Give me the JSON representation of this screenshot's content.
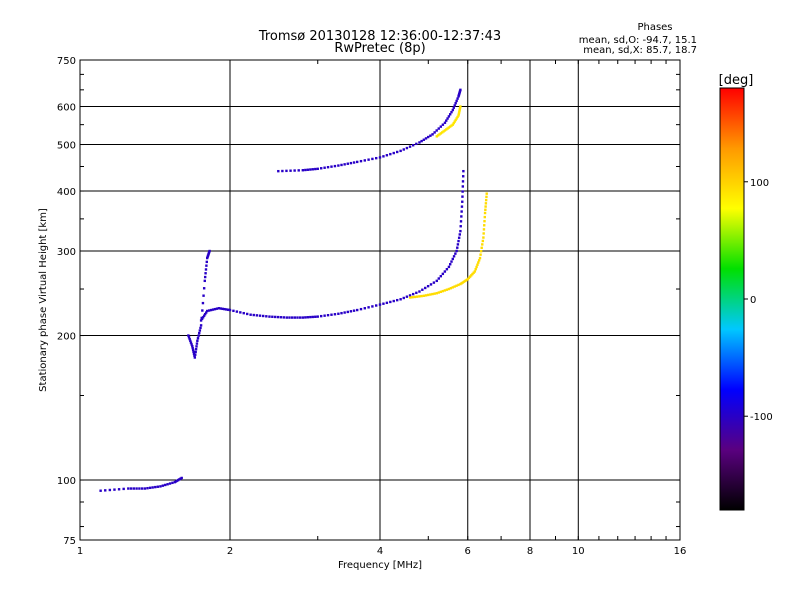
{
  "chart_data": {
    "type": "scatter",
    "title": "Tromsø 20130128 12:36:00-12:37:43",
    "subtitle": "RwPretec (8p)",
    "xlabel": "Frequency [MHz]",
    "ylabel": "Stationary phase Virtual Height [km]",
    "x_scale": "log",
    "y_scale": "log",
    "xlim": [
      1,
      16
    ],
    "ylim": [
      75,
      750
    ],
    "x_ticks": [
      1,
      2,
      4,
      6,
      8,
      10,
      16
    ],
    "x_tick_labels": [
      "1",
      "2",
      "4",
      "6",
      "8",
      "10",
      "16"
    ],
    "y_ticks": [
      75,
      100,
      200,
      300,
      400,
      500,
      600,
      750
    ],
    "y_tick_labels": [
      "75",
      "100",
      "200",
      "300",
      "400",
      "500",
      "600",
      "750"
    ],
    "x_gridlines": [
      2,
      4,
      6,
      8,
      10
    ],
    "y_gridlines": [
      100,
      200,
      300,
      400,
      500,
      600
    ],
    "grid": true,
    "phase_stats": {
      "heading": "Phases",
      "line_o": "mean, sd,O: -94.7, 15.1",
      "line_x": "mean, sd,X: 85.7, 18.7"
    },
    "colorbar": {
      "label": "[deg]",
      "range": [
        -180,
        180
      ],
      "ticks": [
        100,
        0,
        -100
      ],
      "tick_labels": [
        "100",
        "0",
        "-100"
      ],
      "colors": [
        "#000000",
        "#5a0080",
        "#0000ff",
        "#00c8ff",
        "#00e000",
        "#ffff00",
        "#ff9900",
        "#ff0000"
      ]
    },
    "traces": [
      {
        "name_hint": "F2 lower branch O",
        "phase": -100,
        "points": [
          [
            1.75,
            215
          ],
          [
            1.8,
            225
          ],
          [
            1.9,
            228
          ],
          [
            2.0,
            226
          ],
          [
            2.2,
            221
          ],
          [
            2.4,
            219
          ],
          [
            2.6,
            218
          ],
          [
            2.8,
            218
          ],
          [
            3.0,
            219
          ],
          [
            3.3,
            222
          ],
          [
            3.6,
            226
          ],
          [
            4.0,
            232
          ],
          [
            4.4,
            238
          ],
          [
            4.8,
            247
          ],
          [
            5.2,
            260
          ],
          [
            5.5,
            278
          ],
          [
            5.7,
            300
          ],
          [
            5.8,
            330
          ],
          [
            5.85,
            380
          ],
          [
            5.88,
            440
          ]
        ]
      },
      {
        "name_hint": "F2 lower branch X",
        "phase": 95,
        "points": [
          [
            4.6,
            240
          ],
          [
            4.9,
            242
          ],
          [
            5.2,
            245
          ],
          [
            5.5,
            250
          ],
          [
            5.8,
            256
          ],
          [
            6.0,
            262
          ],
          [
            6.2,
            272
          ],
          [
            6.35,
            290
          ],
          [
            6.45,
            320
          ],
          [
            6.5,
            360
          ],
          [
            6.55,
            395
          ]
        ]
      },
      {
        "name_hint": "Multi-hop F2 O",
        "phase": -100,
        "points": [
          [
            2.5,
            440
          ],
          [
            2.8,
            442
          ],
          [
            3.0,
            445
          ],
          [
            3.3,
            452
          ],
          [
            3.6,
            460
          ],
          [
            4.0,
            470
          ],
          [
            4.4,
            485
          ],
          [
            4.8,
            505
          ],
          [
            5.1,
            525
          ],
          [
            5.4,
            555
          ],
          [
            5.6,
            590
          ],
          [
            5.75,
            630
          ],
          [
            5.8,
            650
          ]
        ]
      },
      {
        "name_hint": "Multi-hop F2 X",
        "phase": 90,
        "points": [
          [
            5.2,
            520
          ],
          [
            5.4,
            535
          ],
          [
            5.6,
            550
          ],
          [
            5.75,
            575
          ],
          [
            5.8,
            600
          ]
        ]
      },
      {
        "name_hint": "Low E O",
        "phase": -100,
        "points": [
          [
            1.1,
            95
          ],
          [
            1.25,
            96
          ],
          [
            1.35,
            96
          ],
          [
            1.45,
            97
          ],
          [
            1.55,
            99
          ],
          [
            1.6,
            101
          ]
        ]
      },
      {
        "name_hint": "Cusp echoes O",
        "phase": -100,
        "points": [
          [
            1.65,
            200
          ],
          [
            1.68,
            190
          ],
          [
            1.7,
            180
          ],
          [
            1.72,
            195
          ],
          [
            1.75,
            210
          ],
          [
            1.78,
            260
          ],
          [
            1.8,
            290
          ],
          [
            1.82,
            300
          ]
        ]
      }
    ]
  }
}
